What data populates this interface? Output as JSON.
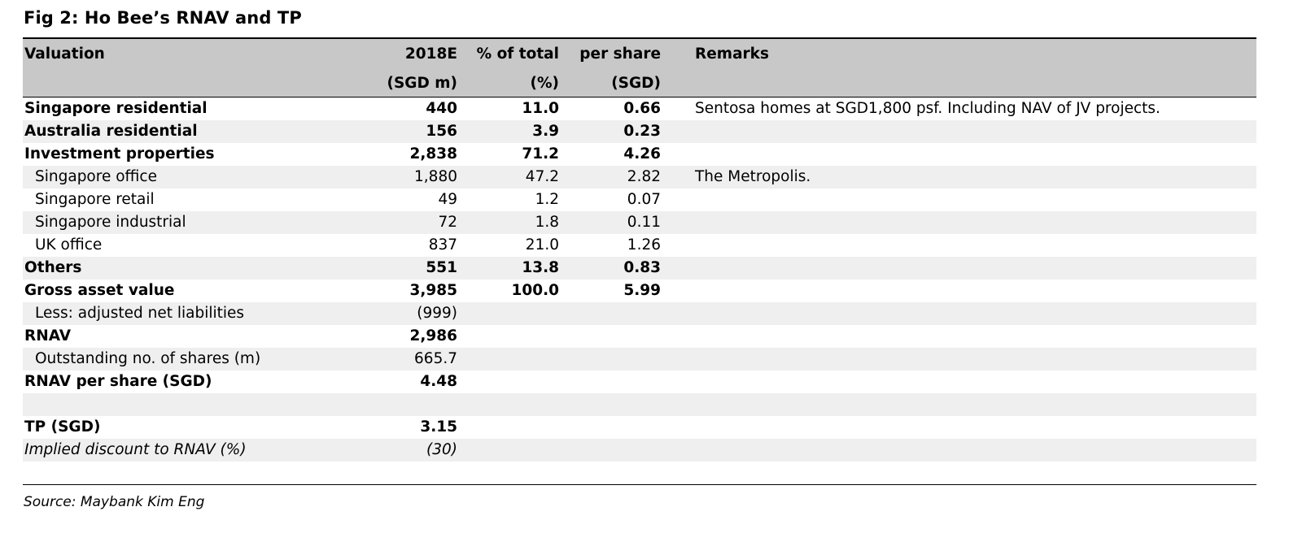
{
  "figure": {
    "title": "Fig 2: Ho Bee’s RNAV and TP",
    "source": "Source: Maybank Kim Eng"
  },
  "table": {
    "header": {
      "row1": [
        "Valuation",
        "2018E",
        "% of total",
        "per share",
        "Remarks"
      ],
      "row2": [
        "",
        "(SGD m)",
        "(%)",
        "(SGD)",
        ""
      ]
    },
    "rows": [
      {
        "label": "Singapore residential",
        "value": "440",
        "pct": "11.0",
        "per_share": "0.66",
        "remarks": "Sentosa homes at SGD1,800 psf. Including NAV of JV projects."
      },
      {
        "label": "Australia residential",
        "value": "156",
        "pct": "3.9",
        "per_share": "0.23",
        "remarks": ""
      },
      {
        "label": "Investment properties",
        "value": "2,838",
        "pct": "71.2",
        "per_share": "4.26",
        "remarks": ""
      },
      {
        "label": "Singapore office",
        "value": "1,880",
        "pct": "47.2",
        "per_share": "2.82",
        "remarks": "The Metropolis."
      },
      {
        "label": "Singapore retail",
        "value": "49",
        "pct": "1.2",
        "per_share": "0.07",
        "remarks": ""
      },
      {
        "label": "Singapore industrial",
        "value": "72",
        "pct": "1.8",
        "per_share": "0.11",
        "remarks": ""
      },
      {
        "label": "UK office",
        "value": "837",
        "pct": "21.0",
        "per_share": "1.26",
        "remarks": ""
      },
      {
        "label": "Others",
        "value": "551",
        "pct": "13.8",
        "per_share": "0.83",
        "remarks": ""
      },
      {
        "label": "Gross asset value",
        "value": "3,985",
        "pct": "100.0",
        "per_share": "5.99",
        "remarks": ""
      },
      {
        "label": "Less: adjusted net liabilities",
        "value": "(999)",
        "pct": "",
        "per_share": "",
        "remarks": ""
      },
      {
        "label": "RNAV",
        "value": "2,986",
        "pct": "",
        "per_share": "",
        "remarks": ""
      },
      {
        "label": "Outstanding no. of shares (m)",
        "value": "665.7",
        "pct": "",
        "per_share": "",
        "remarks": ""
      },
      {
        "label": "RNAV per share (SGD)",
        "value": "4.48",
        "pct": "",
        "per_share": "",
        "remarks": ""
      },
      {
        "label": "",
        "value": "",
        "pct": "",
        "per_share": "",
        "remarks": ""
      },
      {
        "label": "TP (SGD)",
        "value": "3.15",
        "pct": "",
        "per_share": "",
        "remarks": ""
      },
      {
        "label": "Implied discount to RNAV (%)",
        "value": "(30)",
        "pct": "",
        "per_share": "",
        "remarks": ""
      },
      {
        "label": "",
        "value": "",
        "pct": "",
        "per_share": "",
        "remarks": ""
      }
    ]
  }
}
